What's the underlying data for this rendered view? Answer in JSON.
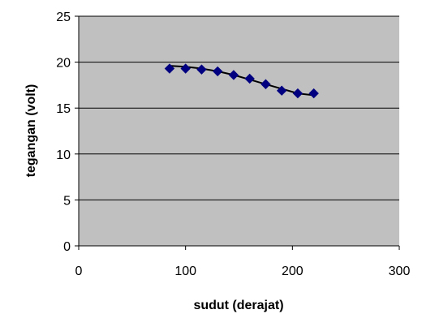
{
  "chart_data": {
    "type": "scatter",
    "xlabel": "sudut (derajat)",
    "ylabel": "tegangan (volt)",
    "xlim": [
      0,
      300
    ],
    "ylim": [
      0,
      25
    ],
    "x_ticks": [
      0,
      100,
      200,
      300
    ],
    "y_ticks": [
      0,
      5,
      10,
      15,
      20,
      25
    ],
    "grid": "horizontal",
    "plot_background": "#c0c0c0",
    "marker_color": "#000080",
    "trendline_color": "#000000",
    "series": [
      {
        "x": [
          85,
          100,
          115,
          130,
          145,
          160,
          175,
          190,
          205,
          220
        ],
        "y": [
          19.3,
          19.3,
          19.2,
          19.0,
          18.6,
          18.2,
          17.6,
          16.9,
          16.6,
          16.6
        ]
      }
    ],
    "trendline": {
      "x": [
        85,
        100,
        115,
        130,
        145,
        160,
        175,
        190,
        205,
        220
      ],
      "y": [
        19.6,
        19.5,
        19.3,
        19.0,
        18.6,
        18.1,
        17.6,
        17.1,
        16.6,
        16.4
      ]
    }
  }
}
